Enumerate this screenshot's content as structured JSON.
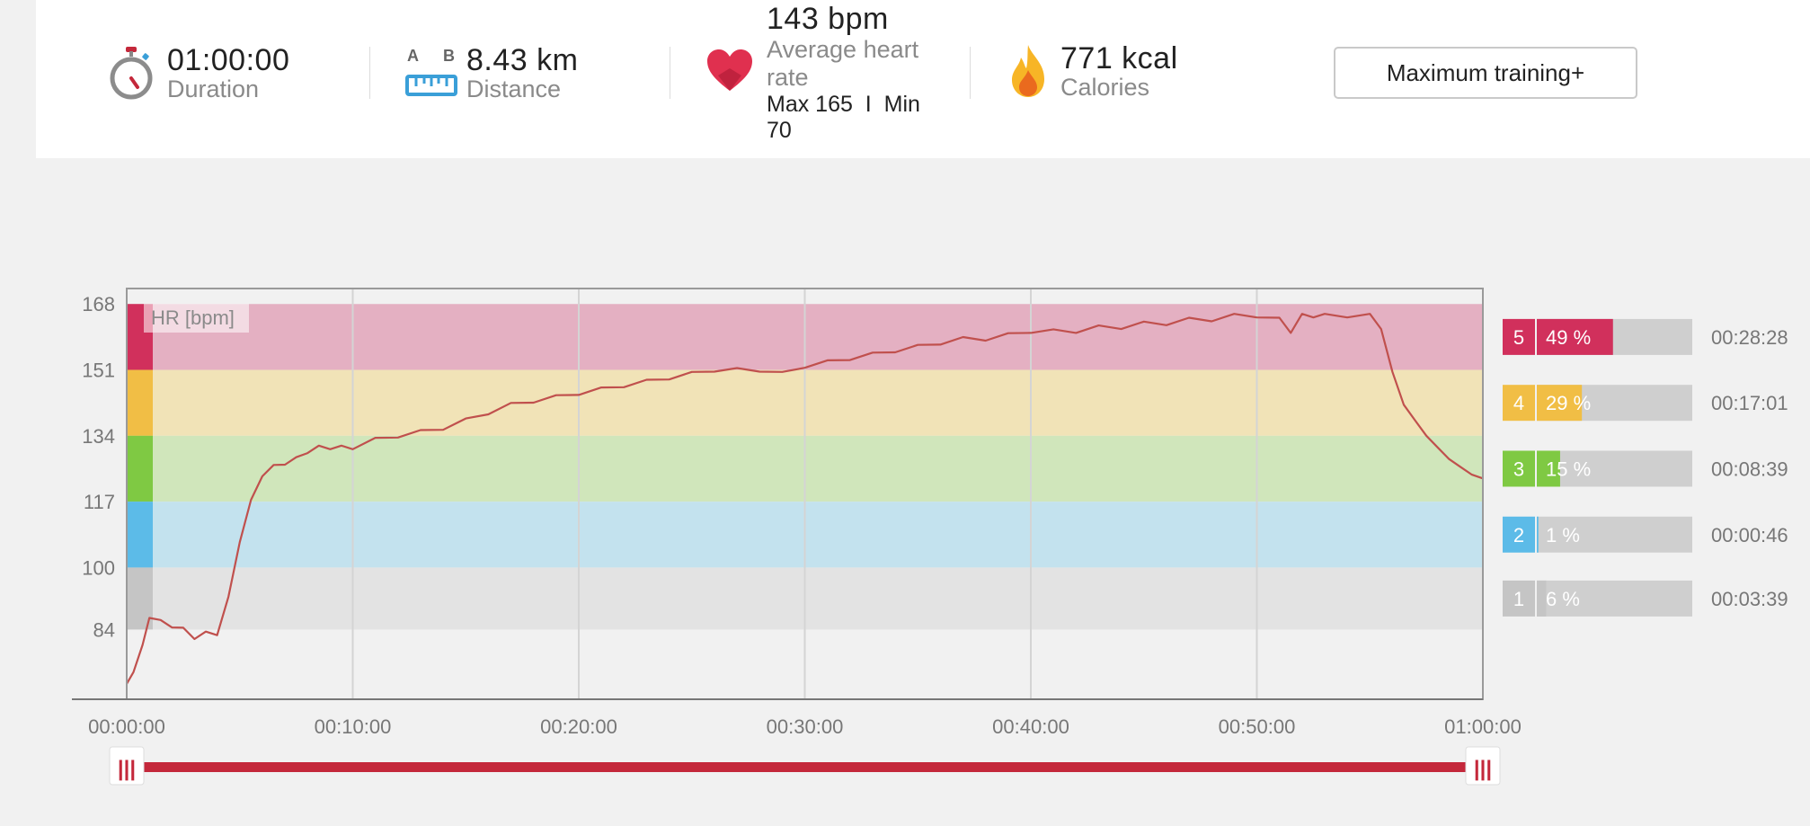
{
  "summary": {
    "duration": {
      "value": "01:00:00",
      "label": "Duration",
      "icon": "stopwatch-icon"
    },
    "distance": {
      "value": "8.43 km",
      "label": "Distance",
      "icon": "ruler-ab-icon",
      "icon_letter_a": "A",
      "icon_letter_b": "B"
    },
    "heart_rate": {
      "value": "143 bpm",
      "label": "Average heart rate",
      "minmax": "Max 165  I  Min 70",
      "icon": "heart-icon"
    },
    "calories": {
      "value": "771 kcal",
      "label": "Calories",
      "icon": "flame-icon"
    },
    "training_benefit": "Maximum training+",
    "more_link": "m"
  },
  "chart_data": {
    "type": "line",
    "title": "HR [bpm]",
    "xlabel": "",
    "ylabel": "",
    "x_ticks": [
      "00:00:00",
      "00:10:00",
      "00:20:00",
      "00:30:00",
      "00:40:00",
      "00:50:00",
      "01:00:00"
    ],
    "x_range_min": [
      0,
      60
    ],
    "y_ticks": [
      168,
      151,
      134,
      117,
      100,
      84
    ],
    "ylim": [
      66,
      172
    ],
    "grid": true,
    "series": [
      {
        "x": [
          0,
          0.3,
          0.7,
          1.0,
          1.5,
          2.0,
          2.5,
          3.0,
          3.5,
          4.0,
          4.5,
          5.0,
          5.5,
          6.0,
          6.5,
          7.0,
          7.5,
          8.0,
          8.5,
          9.0,
          9.5,
          10.0,
          11.0,
          12.0,
          13.0,
          14.0,
          15.0,
          16.0,
          17.0,
          18.0,
          19.0,
          20.0,
          21.0,
          22.0,
          23.0,
          24.0,
          25.0,
          26.0,
          27.0,
          28.0,
          29.0,
          30.0,
          31.0,
          32.0,
          33.0,
          34.0,
          35.0,
          36.0,
          37.0,
          38.0,
          39.0,
          40.0,
          41.0,
          42.0,
          43.0,
          44.0,
          45.0,
          46.0,
          47.0,
          48.0,
          49.0,
          50.0,
          51.0,
          51.5,
          52.0,
          52.5,
          53.0,
          54.0,
          55.0,
          55.5,
          56.0,
          56.5,
          57.0,
          57.5,
          58.0,
          58.5,
          59.0,
          59.5,
          60.0
        ],
        "y": [
          70,
          73,
          80,
          87,
          86,
          85,
          84,
          82,
          83,
          83,
          92,
          107,
          117,
          124,
          126,
          127,
          128,
          130,
          131,
          131,
          131,
          131,
          133,
          134,
          135,
          136,
          138,
          140,
          142,
          143,
          144,
          145,
          146,
          147,
          148,
          149,
          150,
          151,
          151,
          151,
          150,
          152,
          153,
          154,
          155,
          156,
          157,
          158,
          159,
          159,
          160,
          161,
          161,
          161,
          162,
          162,
          163,
          163,
          164,
          164,
          165,
          165,
          164,
          161,
          165,
          165,
          165,
          165,
          165,
          162,
          150,
          142,
          138,
          134,
          131,
          128,
          126,
          124,
          123
        ]
      }
    ],
    "hr_zones": [
      {
        "zone": "5",
        "percent": "49 %",
        "time": "00:28:28",
        "fraction": 0.49,
        "range": [
          151,
          168
        ],
        "color": "#d1305c",
        "band_color": "#e4b0c2"
      },
      {
        "zone": "4",
        "percent": "29 %",
        "time": "00:17:01",
        "fraction": 0.29,
        "range": [
          134,
          151
        ],
        "color": "#f1be45",
        "band_color": "#f1e3b7"
      },
      {
        "zone": "3",
        "percent": "15 %",
        "time": "00:08:39",
        "fraction": 0.15,
        "range": [
          117,
          134
        ],
        "color": "#7fc943",
        "band_color": "#d0e6bb"
      },
      {
        "zone": "2",
        "percent": "1 %",
        "time": "00:00:46",
        "fraction": 0.01,
        "range": [
          100,
          117
        ],
        "color": "#5cbbe8",
        "band_color": "#c3e2ee"
      },
      {
        "zone": "1",
        "percent": "6 %",
        "time": "00:03:39",
        "fraction": 0.06,
        "range": [
          84,
          100
        ],
        "color": "#c5c5c5",
        "band_color": "#e3e3e3"
      }
    ],
    "line_color": "#c0504d"
  },
  "range_slider": {
    "start_fraction": 0,
    "end_fraction": 1,
    "color": "#c4283b",
    "handle_glyph": "|||"
  }
}
